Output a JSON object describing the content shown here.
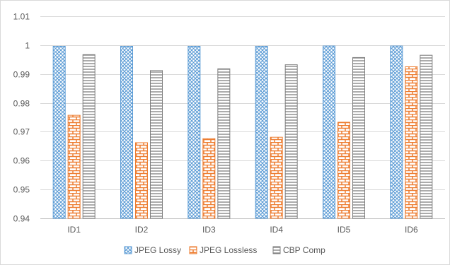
{
  "chart_data": {
    "type": "bar",
    "title": "",
    "xlabel": "",
    "ylabel": "",
    "categories": [
      "ID1",
      "ID2",
      "ID3",
      "ID4",
      "ID5",
      "ID6"
    ],
    "ylim": [
      0.94,
      1.01
    ],
    "yticks": [
      "0.94",
      "0.95",
      "0.96",
      "0.97",
      "0.98",
      "0.99",
      "1",
      "1.01"
    ],
    "grid": true,
    "legend_position": "bottom",
    "series": [
      {
        "name": "JPEG Lossy",
        "color": "#5b9bd5",
        "pattern": "diagonal-crosshatch",
        "values": [
          0.9996,
          0.9996,
          0.9996,
          0.9996,
          0.9997,
          0.9997
        ]
      },
      {
        "name": "JPEG Lossless",
        "color": "#ed7d31",
        "pattern": "brick",
        "values": [
          0.9757,
          0.9662,
          0.9676,
          0.9681,
          0.9733,
          0.9925
        ]
      },
      {
        "name": "CBP Comp",
        "color": "#7f7f7f",
        "pattern": "horizontal-lines",
        "values": [
          0.9967,
          0.9912,
          0.9918,
          0.9932,
          0.9957,
          0.9965
        ]
      }
    ]
  }
}
